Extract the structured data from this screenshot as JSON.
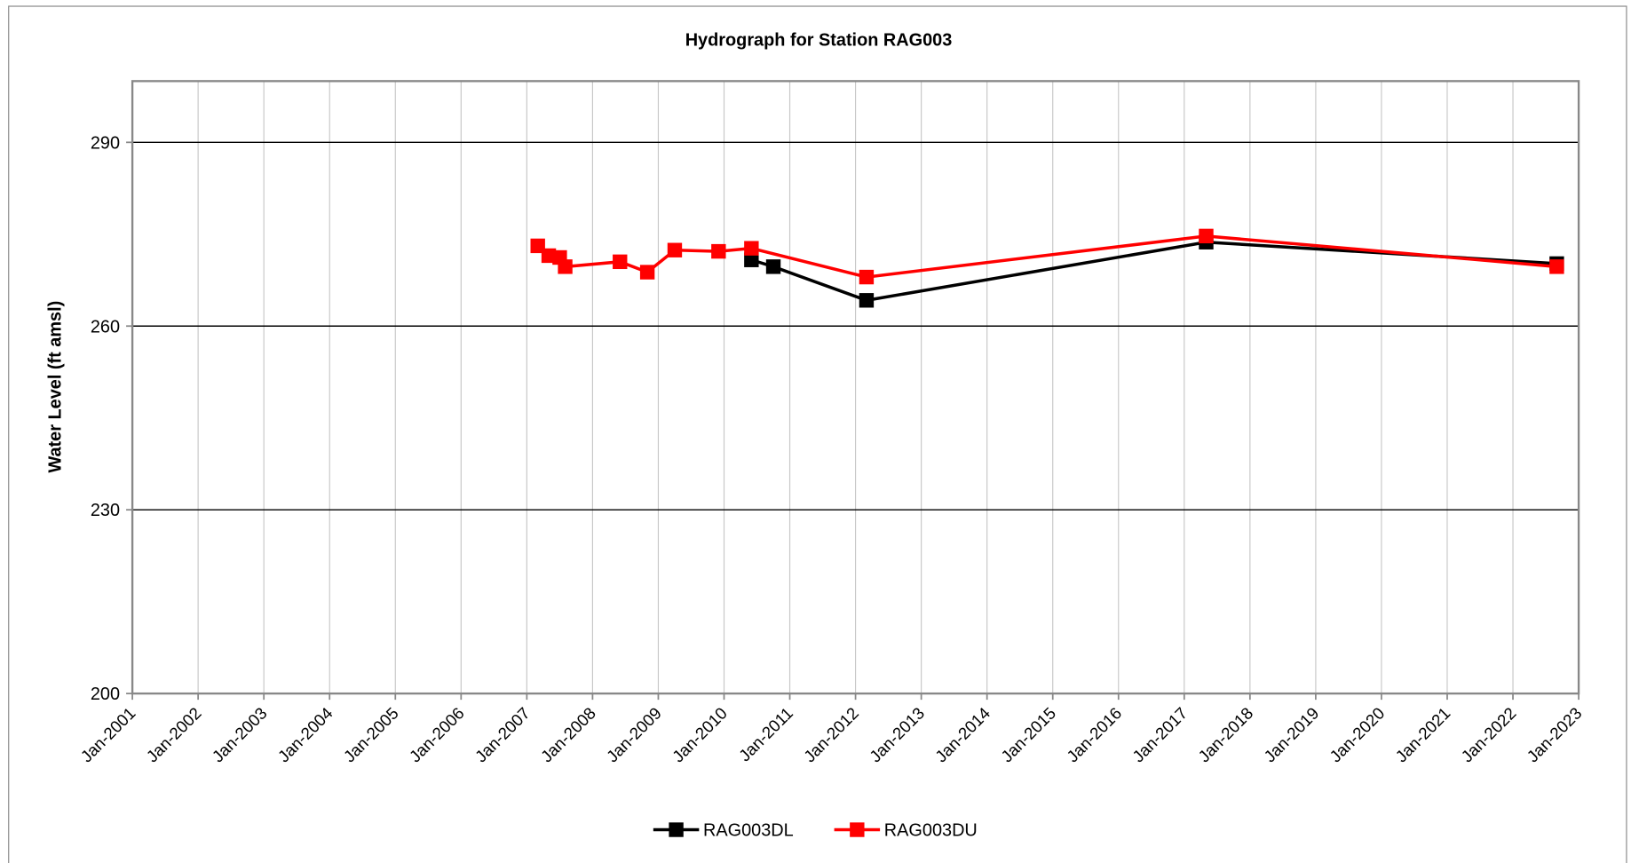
{
  "chart_data": {
    "type": "line",
    "title": "Hydrograph for Station RAG003",
    "y_label": "Water Level (ft amsl)",
    "xlim": [
      "2001-01",
      "2023-01"
    ],
    "xticks": [
      {
        "value": "2001-01",
        "label": "Jan-2001"
      },
      {
        "value": "2002-01",
        "label": "Jan-2002"
      },
      {
        "value": "2003-01",
        "label": "Jan-2003"
      },
      {
        "value": "2004-01",
        "label": "Jan-2004"
      },
      {
        "value": "2005-01",
        "label": "Jan-2005"
      },
      {
        "value": "2006-01",
        "label": "Jan-2006"
      },
      {
        "value": "2007-01",
        "label": "Jan-2007"
      },
      {
        "value": "2008-01",
        "label": "Jan-2008"
      },
      {
        "value": "2009-01",
        "label": "Jan-2009"
      },
      {
        "value": "2010-01",
        "label": "Jan-2010"
      },
      {
        "value": "2011-01",
        "label": "Jan-2011"
      },
      {
        "value": "2012-01",
        "label": "Jan-2012"
      },
      {
        "value": "2013-01",
        "label": "Jan-2013"
      },
      {
        "value": "2014-01",
        "label": "Jan-2014"
      },
      {
        "value": "2015-01",
        "label": "Jan-2015"
      },
      {
        "value": "2016-01",
        "label": "Jan-2016"
      },
      {
        "value": "2017-01",
        "label": "Jan-2017"
      },
      {
        "value": "2018-01",
        "label": "Jan-2018"
      },
      {
        "value": "2019-01",
        "label": "Jan-2019"
      },
      {
        "value": "2020-01",
        "label": "Jan-2020"
      },
      {
        "value": "2021-01",
        "label": "Jan-2021"
      },
      {
        "value": "2022-01",
        "label": "Jan-2022"
      },
      {
        "value": "2023-01",
        "label": "Jan-2023"
      }
    ],
    "ylim": [
      200,
      300
    ],
    "yticks": [
      200,
      230,
      260,
      290
    ],
    "grid": true,
    "legend": "bottom",
    "series": [
      {
        "name": "RAG003DL",
        "color": "#000000",
        "x": [
          "2010-06",
          "2010-10",
          "2012-03",
          "2017-05",
          "2022-09"
        ],
        "values": [
          270.8,
          269.7,
          264.2,
          273.7,
          270.2
        ]
      },
      {
        "name": "RAG003DU",
        "color": "#ff0000",
        "x": [
          "2007-03",
          "2007-05",
          "2007-07",
          "2007-08",
          "2008-06",
          "2008-11",
          "2009-04",
          "2009-12",
          "2010-06",
          "2012-03",
          "2017-05",
          "2022-09"
        ],
        "values": [
          273.1,
          271.5,
          271.2,
          269.7,
          270.5,
          268.8,
          272.4,
          272.2,
          272.7,
          268.0,
          274.7,
          269.7
        ]
      }
    ]
  }
}
